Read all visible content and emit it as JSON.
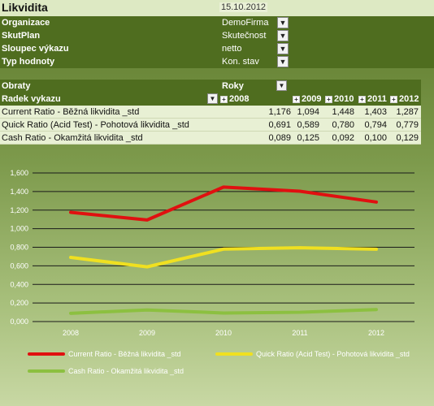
{
  "header": {
    "title": "Likvidita",
    "date": "15.10.2012"
  },
  "filters": [
    {
      "label": "Organizace",
      "value": "DemoFirma",
      "icon": "dropdown-arrow-icon"
    },
    {
      "label": "SkutPlan",
      "value": "Skutečnost",
      "icon": "filter-icon"
    },
    {
      "label": "Sloupec výkazu",
      "value": "netto",
      "icon": "filter-icon"
    },
    {
      "label": "Typ hodnoty",
      "value": "Kon. stav",
      "icon": "filter-icon"
    }
  ],
  "pivot": {
    "corner_label": "Obraty",
    "row_field": "Radek vykazu",
    "column_field": "Roky",
    "years": [
      "2008",
      "2009",
      "2010",
      "2011",
      "2012"
    ],
    "rows": [
      {
        "label": "Current Ratio - Běžná likvidita _std",
        "values": [
          "1,176",
          "1,094",
          "1,448",
          "1,403",
          "1,287"
        ]
      },
      {
        "label": "Quick Ratio (Acid Test) - Pohotová likvidita _std",
        "values": [
          "0,691",
          "0,589",
          "0,780",
          "0,794",
          "0,779"
        ]
      },
      {
        "label": "Cash Ratio - Okamžitá likvidita _std",
        "values": [
          "0,089",
          "0,125",
          "0,092",
          "0,100",
          "0,129"
        ]
      }
    ]
  },
  "chart_data": {
    "type": "line",
    "categories": [
      "2008",
      "2009",
      "2010",
      "2011",
      "2012"
    ],
    "y_tick_labels": [
      "0,000",
      "0,200",
      "0,400",
      "0,600",
      "0,800",
      "1,000",
      "1,200",
      "1,400",
      "1,600"
    ],
    "ylim": [
      0,
      1.6
    ],
    "grid": true,
    "legend_position": "bottom",
    "series": [
      {
        "name": "Current Ratio - Běžná likvidita _std",
        "values": [
          1.176,
          1.094,
          1.448,
          1.403,
          1.287
        ],
        "color": "#e01010"
      },
      {
        "name": "Quick Ratio (Acid Test) - Pohotová likvidita _std",
        "values": [
          0.691,
          0.589,
          0.78,
          0.794,
          0.779
        ],
        "color": "#f0e020"
      },
      {
        "name": "Cash Ratio - Okamžitá likvidita _std",
        "values": [
          0.089,
          0.125,
          0.092,
          0.1,
          0.129
        ],
        "color": "#8cc040"
      }
    ]
  }
}
